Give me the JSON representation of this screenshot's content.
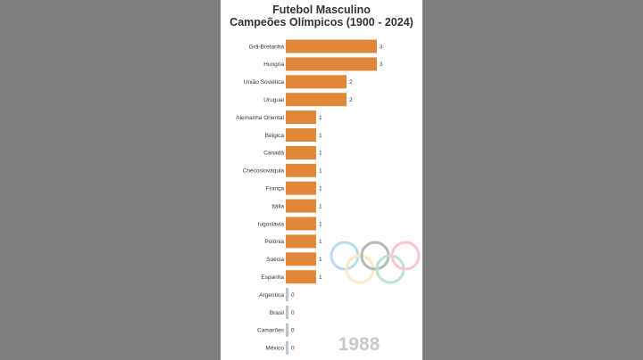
{
  "title_line1": "Futebol Masculino",
  "title_line2": "Campeões Olímpicos (1900 - 2024)",
  "year": "1988",
  "chart_data": {
    "type": "bar",
    "orientation": "horizontal",
    "title": "Futebol Masculino — Campeões Olímpicos (1900 - 2024)",
    "categories": [
      "Grã-Bretanha",
      "Hungria",
      "União Soviética",
      "Uruguai",
      "Alemanha Oriental",
      "Bélgica",
      "Canadá",
      "Checoslováquia",
      "França",
      "Itália",
      "Iugoslávia",
      "Polônia",
      "Suécia",
      "Espanha",
      "Argentina",
      "Brasil",
      "Camarões",
      "México"
    ],
    "values": [
      3,
      3,
      2,
      2,
      1,
      1,
      1,
      1,
      1,
      1,
      1,
      1,
      1,
      1,
      0,
      0,
      0,
      0
    ],
    "bar_color": "#e0873a",
    "xlim": [
      0,
      3.4
    ],
    "grid": false,
    "legend": "none"
  },
  "decoration": {
    "rings_icon": "olympic-rings-icon",
    "ring_colors": [
      "#0081c8",
      "#fcb131",
      "#000000",
      "#00a651",
      "#ee334e"
    ]
  }
}
